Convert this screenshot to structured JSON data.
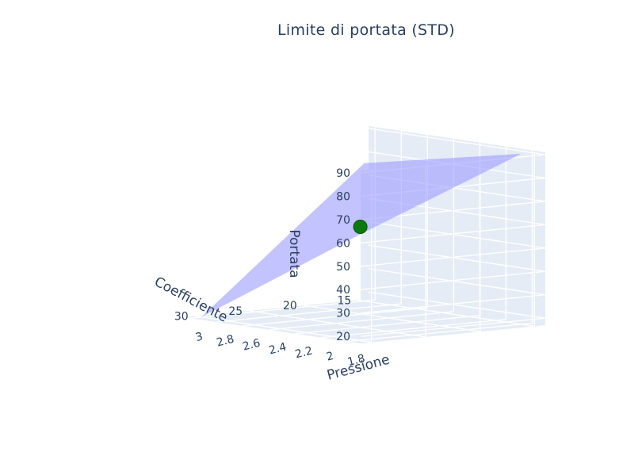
{
  "chart_data": {
    "type": "surface3d",
    "title": "Limite di portata (STD)",
    "axes": {
      "x": {
        "label": "Coefficiente",
        "range": [
          14,
          31
        ],
        "ticks": [
          15,
          20,
          25,
          30
        ],
        "tick_labels": [
          "15",
          "20",
          "25",
          "30"
        ]
      },
      "y": {
        "label": "Pressione",
        "range": [
          1.7,
          3.05
        ],
        "ticks": [
          1.8,
          2,
          2.2,
          2.4,
          2.6,
          2.8,
          3
        ],
        "tick_labels": [
          "1.8",
          "2",
          "2.2",
          "2.4",
          "2.6",
          "2.8",
          "3"
        ]
      },
      "z": {
        "label": "Portata",
        "range": [
          17,
          91
        ],
        "ticks": [
          20,
          30,
          40,
          50,
          60,
          70,
          80,
          90
        ],
        "tick_labels": [
          "20",
          "30",
          "40",
          "50",
          "60",
          "70",
          "80",
          "90"
        ]
      }
    },
    "surface": {
      "name": "",
      "color": "#9b9bff",
      "opacity": 0.6,
      "corners": [
        {
          "x": 15,
          "y": 3,
          "z": 76
        },
        {
          "x": 15,
          "y": 1.8,
          "z": 90
        },
        {
          "x": 30,
          "y": 1.8,
          "z": 62
        },
        {
          "x": 30,
          "y": 3,
          "z": 17
        }
      ]
    },
    "point": {
      "name": "",
      "x": 25,
      "y": 2.2,
      "z": 60,
      "color": "#0a7a0a"
    },
    "grid": true,
    "pane_color": "#e5ecf6"
  }
}
